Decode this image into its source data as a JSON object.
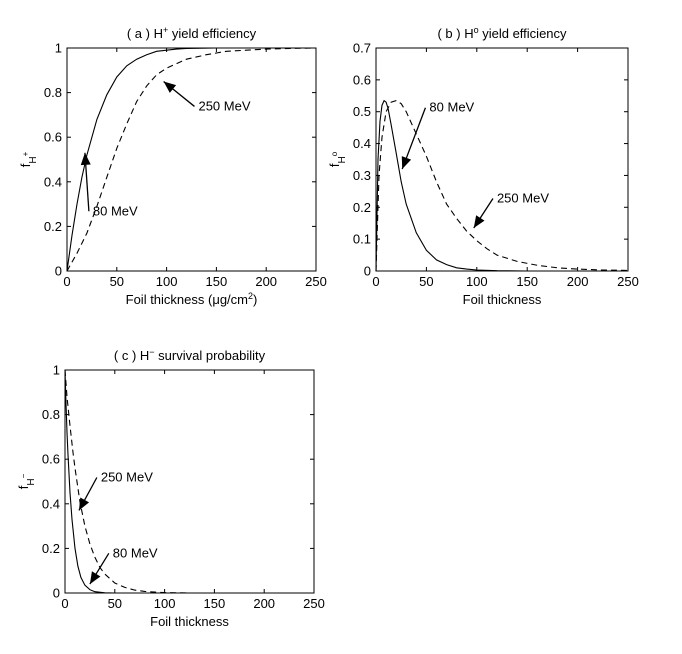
{
  "chart_data": [
    {
      "type": "line",
      "title": {
        "pre": "( a ) H",
        "sup": "+",
        "post": " yield efficiency"
      },
      "xlabel": {
        "pre": "Foil thickness (μg/cm",
        "sup": "2",
        "post": ")"
      },
      "ylabel": {
        "base": "f",
        "sub": "H",
        "subsup": "+"
      },
      "xlim": [
        0,
        250
      ],
      "ylim": [
        0,
        1
      ],
      "xticks": [
        "0",
        "50",
        "100",
        "150",
        "200",
        "250"
      ],
      "yticks": [
        "0",
        "0.2",
        "0.4",
        "0.6",
        "0.8",
        "1"
      ],
      "grid": false,
      "series": [
        {
          "name": "80 MeV",
          "style": "solid",
          "x": [
            0,
            5,
            10,
            15,
            20,
            30,
            40,
            50,
            60,
            70,
            80,
            90,
            100,
            110,
            120,
            150,
            200,
            250
          ],
          "y": [
            0,
            0.16,
            0.3,
            0.42,
            0.52,
            0.68,
            0.79,
            0.87,
            0.92,
            0.95,
            0.97,
            0.985,
            0.99,
            0.995,
            0.998,
            1,
            1,
            1
          ]
        },
        {
          "name": "250 MeV",
          "style": "dashed",
          "x": [
            0,
            10,
            20,
            30,
            40,
            50,
            60,
            70,
            80,
            90,
            100,
            120,
            140,
            160,
            180,
            200,
            225,
            250
          ],
          "y": [
            0,
            0.08,
            0.17,
            0.29,
            0.42,
            0.55,
            0.66,
            0.76,
            0.83,
            0.88,
            0.91,
            0.95,
            0.97,
            0.985,
            0.99,
            0.995,
            0.998,
            1
          ]
        }
      ],
      "annotations": [
        {
          "text": "250 MeV",
          "x": 132,
          "y": 0.72,
          "tx": 97,
          "ty": 0.85
        },
        {
          "text": "80 MeV",
          "x": 26,
          "y": 0.25,
          "tx": 18,
          "ty": 0.53
        }
      ]
    },
    {
      "type": "line",
      "title": {
        "pre": "( b ) H",
        "sup": "o",
        "post": " yield efficiency"
      },
      "xlabel": {
        "pre": "Foil thickness",
        "sup": "",
        "post": ""
      },
      "ylabel": {
        "base": "f",
        "sub": "H",
        "subsup": "o"
      },
      "xlim": [
        0,
        250
      ],
      "ylim": [
        0,
        0.7
      ],
      "xticks": [
        "0",
        "50",
        "100",
        "150",
        "200",
        "250"
      ],
      "yticks": [
        "0",
        "0.1",
        "0.2",
        "0.3",
        "0.4",
        "0.5",
        "0.6",
        "0.7"
      ],
      "grid": false,
      "series": [
        {
          "name": "80 MeV",
          "style": "solid",
          "x": [
            0,
            2,
            4,
            6,
            8,
            10,
            12,
            15,
            20,
            25,
            30,
            40,
            50,
            60,
            70,
            80,
            90,
            100,
            120,
            150,
            200,
            250
          ],
          "y": [
            0,
            0.35,
            0.47,
            0.52,
            0.535,
            0.53,
            0.51,
            0.46,
            0.37,
            0.28,
            0.21,
            0.12,
            0.065,
            0.035,
            0.02,
            0.01,
            0.006,
            0.003,
            0.001,
            0,
            0,
            0
          ]
        },
        {
          "name": "250 MeV",
          "style": "dashed",
          "x": [
            0,
            3,
            6,
            10,
            15,
            20,
            25,
            30,
            40,
            50,
            60,
            70,
            80,
            90,
            100,
            110,
            120,
            140,
            160,
            180,
            200,
            225,
            250
          ],
          "y": [
            0,
            0.3,
            0.42,
            0.5,
            0.53,
            0.535,
            0.525,
            0.5,
            0.43,
            0.36,
            0.28,
            0.21,
            0.165,
            0.125,
            0.095,
            0.07,
            0.05,
            0.03,
            0.018,
            0.01,
            0.006,
            0.003,
            0.002
          ]
        }
      ],
      "annotations": [
        {
          "text": "80 MeV",
          "x": 53,
          "y": 0.5,
          "tx": 26,
          "ty": 0.32
        },
        {
          "text": "250 MeV",
          "x": 120,
          "y": 0.215,
          "tx": 97,
          "ty": 0.135
        }
      ]
    },
    {
      "type": "line",
      "title": {
        "pre": "( c ) H",
        "sup": "−",
        "post": " survival probability"
      },
      "xlabel": {
        "pre": "Foil thickness",
        "sup": "",
        "post": ""
      },
      "ylabel": {
        "base": "f",
        "sub": "H",
        "subsup": "−"
      },
      "xlim": [
        0,
        250
      ],
      "ylim": [
        0,
        1
      ],
      "xticks": [
        "0",
        "50",
        "100",
        "150",
        "200",
        "250"
      ],
      "yticks": [
        "0",
        "0.2",
        "0.4",
        "0.6",
        "0.8",
        "1"
      ],
      "grid": false,
      "series": [
        {
          "name": "80 MeV",
          "style": "solid",
          "x": [
            0,
            1,
            2,
            3,
            5,
            7,
            10,
            13,
            16,
            20,
            25,
            30,
            40,
            50,
            75,
            100,
            150,
            200,
            250
          ],
          "y": [
            1,
            0.85,
            0.72,
            0.62,
            0.45,
            0.33,
            0.2,
            0.12,
            0.07,
            0.035,
            0.015,
            0.006,
            0.001,
            0,
            0,
            0,
            0,
            0,
            0
          ]
        },
        {
          "name": "250 MeV",
          "style": "dashed",
          "x": [
            0,
            2,
            5,
            8,
            10,
            15,
            20,
            25,
            30,
            35,
            40,
            50,
            60,
            70,
            80,
            90,
            100,
            125,
            150,
            200,
            250
          ],
          "y": [
            1,
            0.88,
            0.75,
            0.63,
            0.56,
            0.41,
            0.3,
            0.22,
            0.16,
            0.115,
            0.085,
            0.045,
            0.025,
            0.013,
            0.007,
            0.004,
            0.002,
            0,
            0,
            0,
            0
          ]
        }
      ],
      "annotations": [
        {
          "text": "250 MeV",
          "x": 36,
          "y": 0.5,
          "tx": 14,
          "ty": 0.37
        },
        {
          "text": "80 MeV",
          "x": 48,
          "y": 0.16,
          "tx": 25,
          "ty": 0.04
        }
      ]
    }
  ]
}
